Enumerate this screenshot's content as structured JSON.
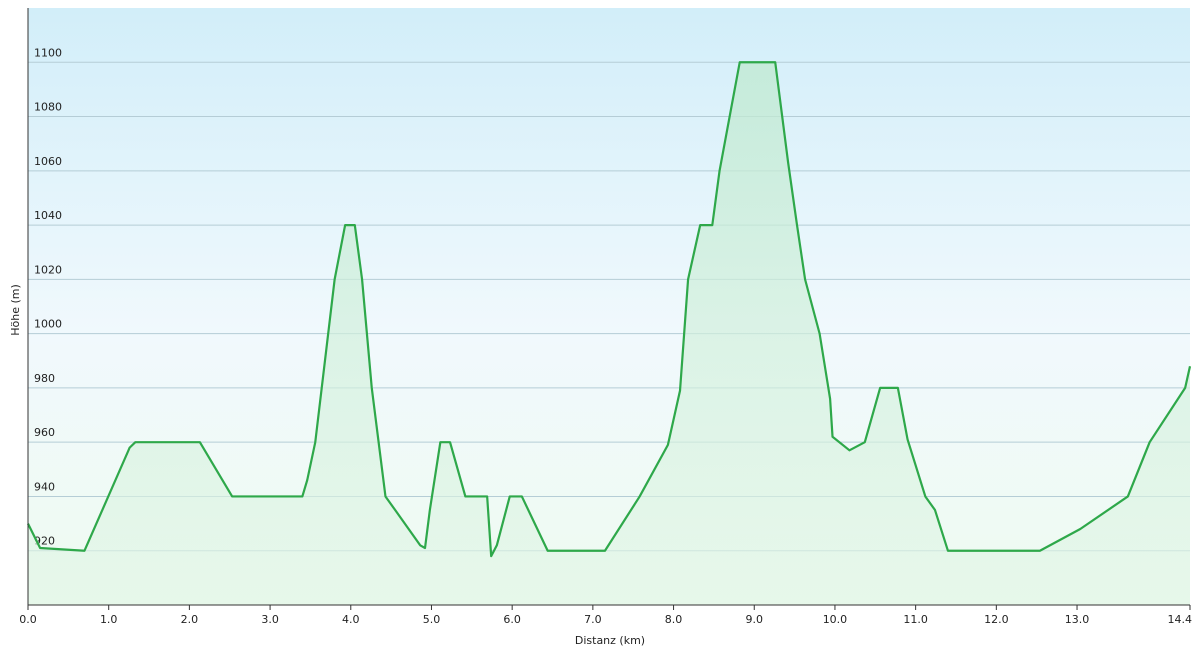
{
  "chart_data": {
    "type": "area",
    "x_label": "Distanz  (km)",
    "y_label": "Höhe (m)",
    "color": "#2ea84a",
    "grid": true,
    "xlim": [
      0,
      14.4
    ],
    "ylim": [
      900,
      1120
    ],
    "xticks": [
      {
        "value": 0,
        "label": "0.0"
      },
      {
        "value": 1,
        "label": "1.0"
      },
      {
        "value": 2,
        "label": "2.0"
      },
      {
        "value": 3,
        "label": "3.0"
      },
      {
        "value": 4,
        "label": "4.0"
      },
      {
        "value": 5,
        "label": "5.0"
      },
      {
        "value": 6,
        "label": "6.0"
      },
      {
        "value": 7,
        "label": "7.0"
      },
      {
        "value": 8,
        "label": "8.0"
      },
      {
        "value": 9,
        "label": "9.0"
      },
      {
        "value": 10,
        "label": "10.0"
      },
      {
        "value": 11,
        "label": "11.0"
      },
      {
        "value": 12,
        "label": "12.0"
      },
      {
        "value": 13,
        "label": "13.0"
      },
      {
        "value": 14.4,
        "label": "14.4"
      }
    ],
    "yticks": [
      920,
      940,
      960,
      980,
      1000,
      1020,
      1040,
      1060,
      1080,
      1100
    ],
    "x": [
      0,
      0.15,
      0.7,
      1.26,
      1.33,
      2.13,
      2.53,
      3.4,
      3.46,
      3.56,
      3.64,
      3.8,
      3.93,
      4.05,
      4.14,
      4.26,
      4.43,
      4.55,
      4.86,
      4.92,
      4.98,
      5.11,
      5.23,
      5.42,
      5.69,
      5.74,
      5.81,
      5.97,
      6.12,
      6.44,
      7.15,
      7.58,
      7.93,
      8.08,
      8.18,
      8.33,
      8.48,
      8.57,
      8.82,
      9.26,
      9.42,
      9.53,
      9.63,
      9.81,
      9.94,
      9.97,
      10.18,
      10.37,
      10.56,
      10.78,
      10.9,
      11.12,
      11.24,
      11.4,
      12.54,
      13.04,
      13.63,
      13.9,
      14.34,
      14.4
    ],
    "values": [
      930,
      921,
      920,
      958,
      960,
      960,
      940,
      940,
      946,
      960,
      980,
      1020,
      1040,
      1040,
      1020,
      980,
      940,
      935,
      922,
      921,
      935,
      960,
      960,
      940,
      940,
      918,
      922,
      940,
      940,
      920,
      920,
      940,
      959,
      979,
      1020,
      1040,
      1040,
      1060,
      1100,
      1100,
      1063,
      1040,
      1020,
      1000,
      976,
      962,
      957,
      960,
      980,
      980,
      961,
      940,
      935,
      920,
      920,
      928,
      940,
      960,
      980,
      988
    ]
  }
}
